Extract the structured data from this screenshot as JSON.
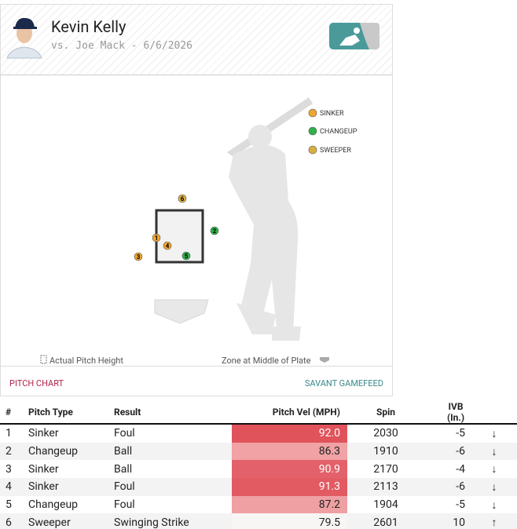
{
  "header": {
    "name": "Kevin Kelly",
    "subtitle": "vs. Joe Mack - 6/6/2026"
  },
  "legend": [
    "SINKER",
    "CHANGEUP",
    "SWEEPER"
  ],
  "footnotes": [
    "Actual Pitch Height",
    "Zone at Middle of Plate"
  ],
  "tabs": [
    "PITCH CHART",
    "SAVANT GAMEFEED"
  ],
  "table": {
    "columns": [
      "#",
      "Pitch Type",
      "Result",
      "Pitch Vel (MPH)",
      "Spin",
      "IVB (In.)"
    ],
    "rows": [
      [
        "1",
        "Sinker",
        "Foul",
        "92.0",
        "2030",
        "-5",
        "↓"
      ],
      [
        "2",
        "Changeup",
        "Ball",
        "86.3",
        "1910",
        "-6",
        "↓"
      ],
      [
        "3",
        "Sinker",
        "Ball",
        "90.9",
        "2170",
        "-4",
        "↓"
      ],
      [
        "4",
        "Sinker",
        "Foul",
        "91.3",
        "2113",
        "-6",
        "↓"
      ],
      [
        "5",
        "Changeup",
        "Foul",
        "87.2",
        "1904",
        "-5",
        "↓"
      ],
      [
        "6",
        "Sweeper",
        "Swinging Strike",
        "79.5",
        "2601",
        "10",
        "↑"
      ]
    ]
  }
}
